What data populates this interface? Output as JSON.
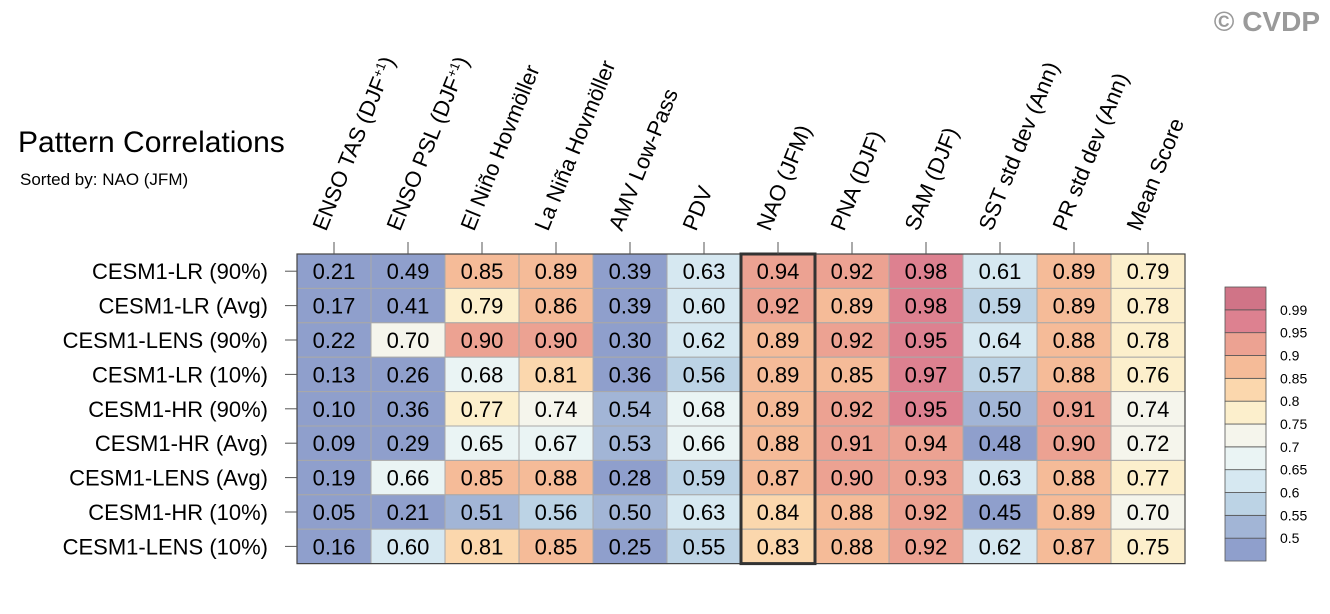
{
  "watermark": "© CVDP",
  "header": {
    "title": "Pattern Correlations",
    "subtitle": "Sorted by: NAO (JFM)"
  },
  "chart_data": {
    "type": "heatmap",
    "title": "Pattern Correlations",
    "subtitle": "Sorted by: NAO (JFM)",
    "columns": [
      {
        "base": "ENSO TAS (DJF",
        "sup": "+1",
        "close": ")"
      },
      {
        "base": "ENSO PSL (DJF",
        "sup": "+1",
        "close": ")"
      },
      {
        "base": "El Niño Hovmöller"
      },
      {
        "base": "La Niña Hovmöller"
      },
      {
        "base": "AMV Low-Pass"
      },
      {
        "base": "PDV"
      },
      {
        "base": "NAO (JFM)"
      },
      {
        "base": "PNA (DJF)"
      },
      {
        "base": "SAM (DJF)"
      },
      {
        "base": "SST std dev (Ann)"
      },
      {
        "base": "PR std dev (Ann)"
      },
      {
        "base": "Mean Score"
      }
    ],
    "sorted_by_column": "NAO (JFM)",
    "rows": [
      {
        "name": "CESM1-LR (90%)",
        "values": [
          0.21,
          0.49,
          0.85,
          0.89,
          0.39,
          0.63,
          0.94,
          0.92,
          0.98,
          0.61,
          0.89,
          0.79
        ]
      },
      {
        "name": "CESM1-LR (Avg)",
        "values": [
          0.17,
          0.41,
          0.79,
          0.86,
          0.39,
          0.6,
          0.92,
          0.89,
          0.98,
          0.59,
          0.89,
          0.78
        ]
      },
      {
        "name": "CESM1-LENS (90%)",
        "values": [
          0.22,
          0.7,
          0.9,
          0.9,
          0.3,
          0.62,
          0.89,
          0.92,
          0.95,
          0.64,
          0.88,
          0.78
        ]
      },
      {
        "name": "CESM1-LR (10%)",
        "values": [
          0.13,
          0.26,
          0.68,
          0.81,
          0.36,
          0.56,
          0.89,
          0.85,
          0.97,
          0.57,
          0.88,
          0.76
        ]
      },
      {
        "name": "CESM1-HR (90%)",
        "values": [
          0.1,
          0.36,
          0.77,
          0.74,
          0.54,
          0.68,
          0.89,
          0.92,
          0.95,
          0.5,
          0.91,
          0.74
        ]
      },
      {
        "name": "CESM1-HR (Avg)",
        "values": [
          0.09,
          0.29,
          0.65,
          0.67,
          0.53,
          0.66,
          0.88,
          0.91,
          0.94,
          0.48,
          0.9,
          0.72
        ]
      },
      {
        "name": "CESM1-LENS (Avg)",
        "values": [
          0.19,
          0.66,
          0.85,
          0.88,
          0.28,
          0.59,
          0.87,
          0.9,
          0.93,
          0.63,
          0.88,
          0.77
        ]
      },
      {
        "name": "CESM1-HR (10%)",
        "values": [
          0.05,
          0.21,
          0.51,
          0.56,
          0.5,
          0.63,
          0.84,
          0.88,
          0.92,
          0.45,
          0.89,
          0.7
        ]
      },
      {
        "name": "CESM1-LENS (10%)",
        "values": [
          0.16,
          0.6,
          0.81,
          0.85,
          0.25,
          0.55,
          0.83,
          0.88,
          0.92,
          0.62,
          0.87,
          0.75
        ]
      }
    ],
    "colorbar": {
      "levels": [
        "0.5",
        "0.55",
        "0.6",
        "0.65",
        "0.7",
        "0.75",
        "0.8",
        "0.85",
        "0.9",
        "0.95",
        "0.99"
      ],
      "thresholds": [
        0.5,
        0.55,
        0.6,
        0.65,
        0.7,
        0.75,
        0.8,
        0.85,
        0.9,
        0.95,
        0.99
      ],
      "colors": [
        "#8f9fcc",
        "#a2b5d6",
        "#bcd3e5",
        "#d6e8f1",
        "#eaf4f4",
        "#f5f5ec",
        "#fcefcc",
        "#fbd7ad",
        "#f5bb98",
        "#eca292",
        "#dd8190",
        "#d07487"
      ]
    }
  }
}
